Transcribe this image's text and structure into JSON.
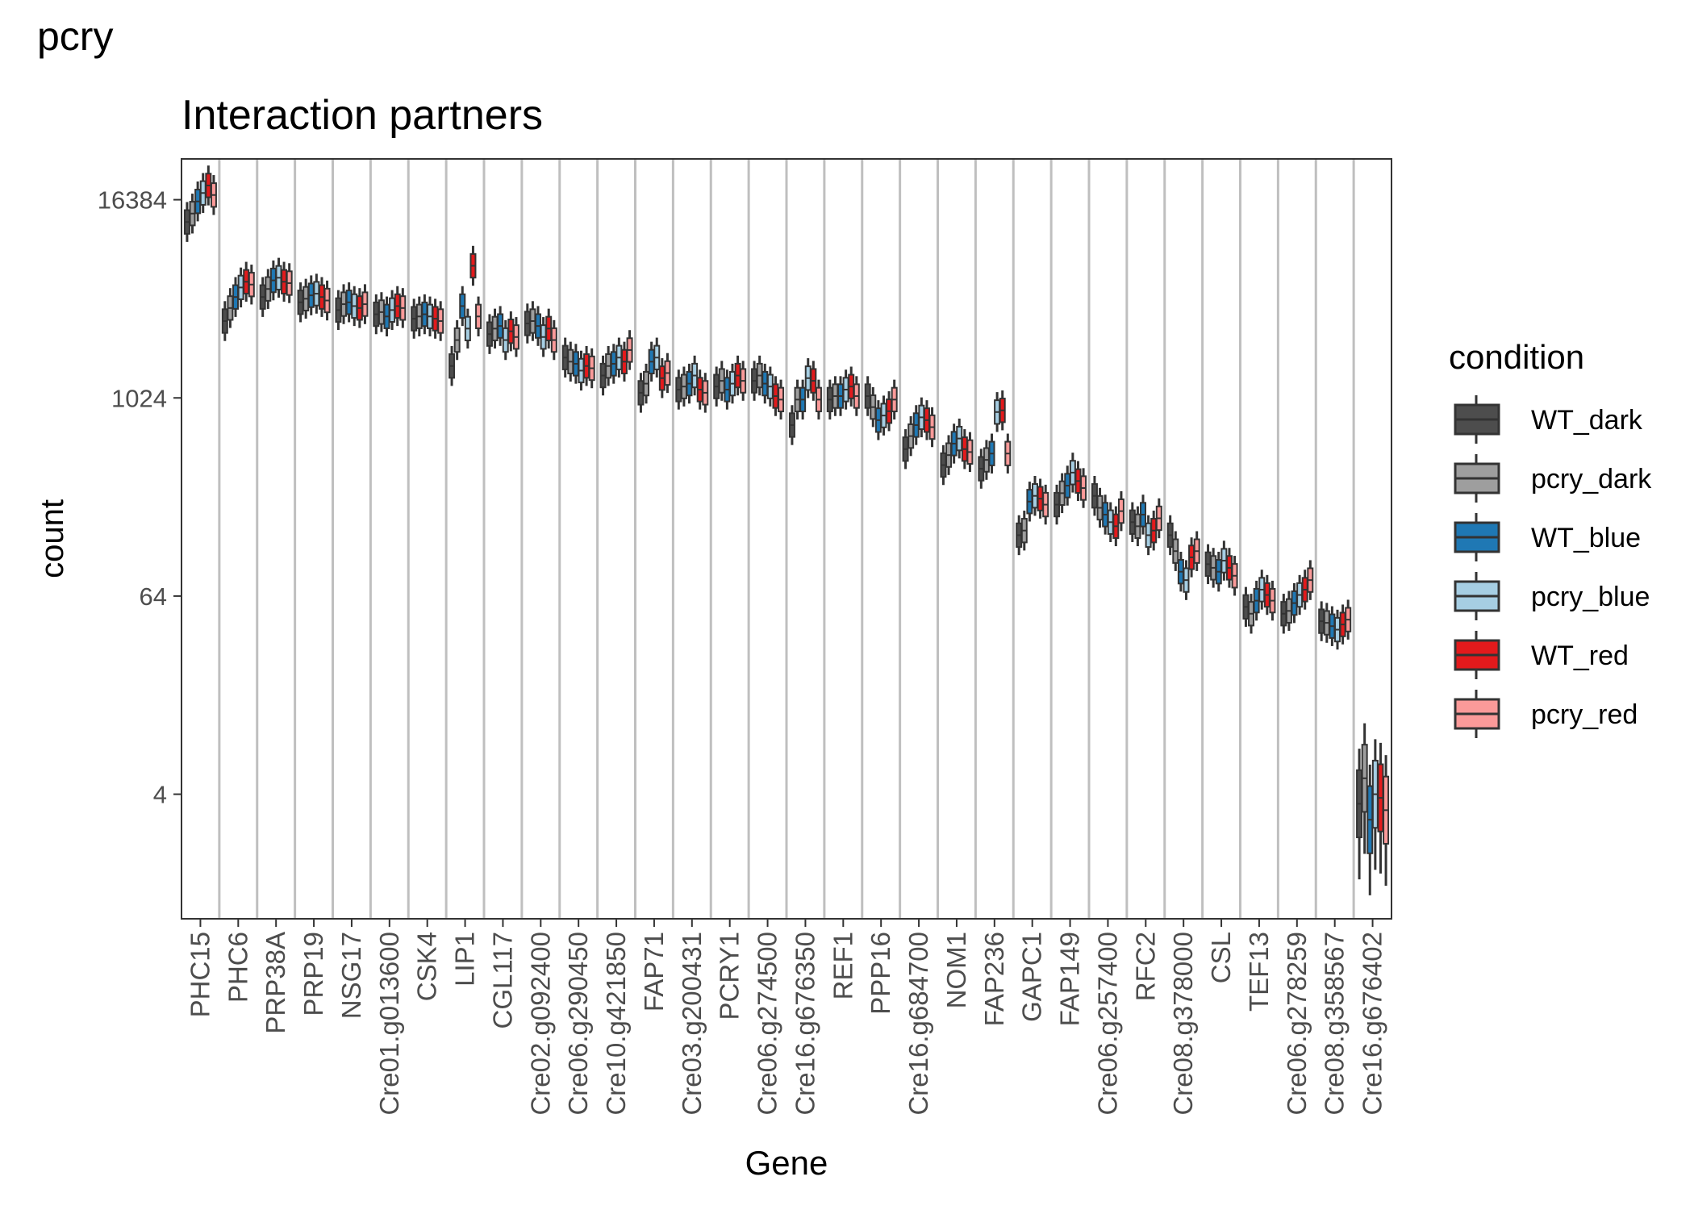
{
  "chart_data": {
    "type": "box",
    "page_title": "pcry",
    "title": "Interaction partners",
    "xlabel": "Gene",
    "ylabel": "count",
    "y_scale": "log2",
    "y_ticks": [
      4,
      64,
      1024,
      16384
    ],
    "y_tick_labels": [
      "4",
      "64",
      "1024",
      "16384"
    ],
    "ylim": [
      0.7,
      29000
    ],
    "grid": "vertical separators between genes",
    "legend": {
      "title": "condition",
      "placement": "right",
      "entries": [
        {
          "name": "WT_dark",
          "color": "#4d4d4d"
        },
        {
          "name": "pcry_dark",
          "color": "#9e9e9e"
        },
        {
          "name": "WT_blue",
          "color": "#1f78b4"
        },
        {
          "name": "pcry_blue",
          "color": "#a6cee3"
        },
        {
          "name": "WT_red",
          "color": "#e31a1c"
        },
        {
          "name": "pcry_red",
          "color": "#fb9a99"
        }
      ]
    },
    "conditions": [
      "WT_dark",
      "pcry_dark",
      "WT_blue",
      "pcry_blue",
      "WT_red",
      "pcry_red"
    ],
    "categories": [
      "PHC15",
      "PHC6",
      "PRP38A",
      "PRP19",
      "NSG17",
      "Cre01.g013600",
      "CSK4",
      "LIP1",
      "CGL117",
      "Cre02.g092400",
      "Cre06.g290450",
      "Cre10.g421850",
      "FAP71",
      "Cre03.g200431",
      "PCRY1",
      "Cre06.g274500",
      "Cre16.g676350",
      "REF1",
      "PPP16",
      "Cre16.g684700",
      "NOM1",
      "FAP236",
      "GAPC1",
      "FAP149",
      "Cre06.g257400",
      "RFC2",
      "Cre08.g378000",
      "CSL",
      "TEF13",
      "Cre06.g278259",
      "Cre08.g358567",
      "Cre16.g676402"
    ],
    "medians": [
      [
        12000,
        13500,
        16000,
        18000,
        20000,
        17500
      ],
      [
        3000,
        3600,
        4200,
        4800,
        5200,
        5000
      ],
      [
        4200,
        4700,
        5300,
        5500,
        5200,
        5100
      ],
      [
        3900,
        4100,
        4300,
        4400,
        4200,
        4000
      ],
      [
        3500,
        3800,
        3900,
        3700,
        3600,
        3800
      ],
      [
        3300,
        3400,
        3200,
        3500,
        3700,
        3600
      ],
      [
        3100,
        3200,
        3300,
        3200,
        3100,
        3000
      ],
      [
        1600,
        2300,
        3700,
        2700,
        6500,
        3200
      ],
      [
        2500,
        2700,
        2800,
        2300,
        2600,
        2400
      ],
      [
        2900,
        3000,
        2800,
        2400,
        2700,
        2300
      ],
      [
        1800,
        1700,
        1650,
        1500,
        1600,
        1550
      ],
      [
        1400,
        1600,
        1650,
        1800,
        1700,
        2000
      ],
      [
        1100,
        1250,
        1700,
        1800,
        1350,
        1450
      ],
      [
        1150,
        1200,
        1250,
        1400,
        1150,
        1100
      ],
      [
        1200,
        1300,
        1150,
        1250,
        1400,
        1300
      ],
      [
        1300,
        1400,
        1250,
        1200,
        1050,
        1000
      ],
      [
        700,
        1000,
        1000,
        1350,
        1300,
        1000
      ],
      [
        1000,
        1050,
        1050,
        1150,
        1200,
        1050
      ],
      [
        1050,
        900,
        750,
        800,
        850,
        1000
      ],
      [
        500,
        600,
        700,
        780,
        750,
        680
      ],
      [
        400,
        460,
        540,
        580,
        500,
        480
      ],
      [
        380,
        430,
        470,
        840,
        860,
        470
      ],
      [
        150,
        160,
        240,
        260,
        250,
        230
      ],
      [
        230,
        270,
        300,
        360,
        320,
        290
      ],
      [
        260,
        220,
        200,
        180,
        170,
        210
      ],
      [
        180,
        170,
        200,
        150,
        160,
        190
      ],
      [
        150,
        120,
        90,
        80,
        110,
        120
      ],
      [
        100,
        95,
        90,
        105,
        95,
        85
      ],
      [
        55,
        50,
        60,
        70,
        65,
        60
      ],
      [
        50,
        52,
        58,
        65,
        70,
        80
      ],
      [
        45,
        44,
        42,
        40,
        43,
        46
      ],
      [
        3.5,
        5,
        2.8,
        4,
        3.8,
        3.2
      ]
    ]
  }
}
